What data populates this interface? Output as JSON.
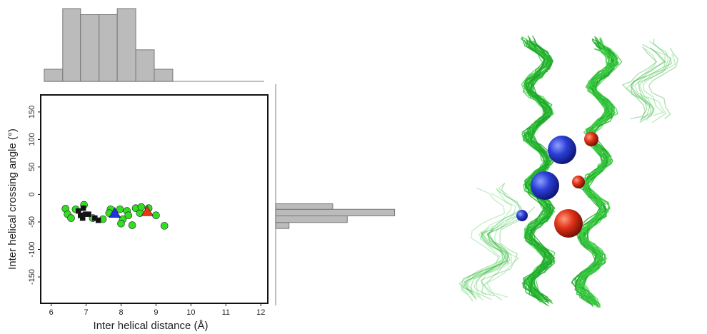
{
  "chart_data": [
    {
      "type": "scatter",
      "xlabel": "Inter helical distance (Å)",
      "ylabel": "Inter helical crossing angle (°)",
      "xlim": [
        5.7,
        12.2
      ],
      "ylim": [
        -198,
        181
      ],
      "xticks": [
        6,
        7,
        8,
        9,
        10,
        11,
        12
      ],
      "yticks": [
        -150,
        -100,
        -50,
        0,
        50,
        100,
        150
      ],
      "series": [
        {
          "color": "#33dd22",
          "marker": "circle",
          "x": [
            6.41,
            6.47,
            6.94,
            6.7,
            7.19,
            7.48,
            7.7,
            7.97,
            8.05,
            8.17,
            8.32,
            8.42,
            8.54,
            8.58,
            8.79,
            9.0,
            9.24,
            8.21,
            6.57,
            8.0,
            7.66
          ],
          "values": [
            -26,
            -36,
            -19,
            -27,
            -43,
            -45,
            -27,
            -27,
            -45,
            -30,
            -56,
            -25,
            -34,
            -23,
            -25,
            -38,
            -57,
            -38,
            -43,
            -53,
            -34
          ]
        },
        {
          "color": "#111111",
          "marker": "square",
          "x": [
            6.78,
            6.84,
            6.9,
            6.98,
            7.07,
            7.25,
            7.35,
            6.92
          ],
          "values": [
            -30,
            -38,
            -43,
            -36,
            -36,
            -43,
            -47,
            -25
          ]
        },
        {
          "color": "#2233dd",
          "marker": "triangle",
          "x": [
            7.82
          ],
          "values": [
            -34
          ]
        },
        {
          "color": "#ee3311",
          "marker": "triangle",
          "x": [
            8.75
          ],
          "values": [
            -31
          ]
        }
      ]
    },
    {
      "type": "histogram",
      "orientation": "vertical",
      "color": "#bbbbbb",
      "bins": [
        5.8,
        6.33,
        6.84,
        7.37,
        7.89,
        8.42,
        8.95,
        9.48
      ],
      "values": [
        1,
        6,
        5.5,
        5.5,
        6,
        2.6,
        1
      ]
    },
    {
      "type": "histogram",
      "orientation": "horizontal",
      "color": "#bbbbbb",
      "bins": [
        -62,
        -51,
        -39,
        -27,
        -17
      ],
      "values": [
        1.1,
        5.9,
        9.8,
        4.7
      ]
    }
  ]
}
